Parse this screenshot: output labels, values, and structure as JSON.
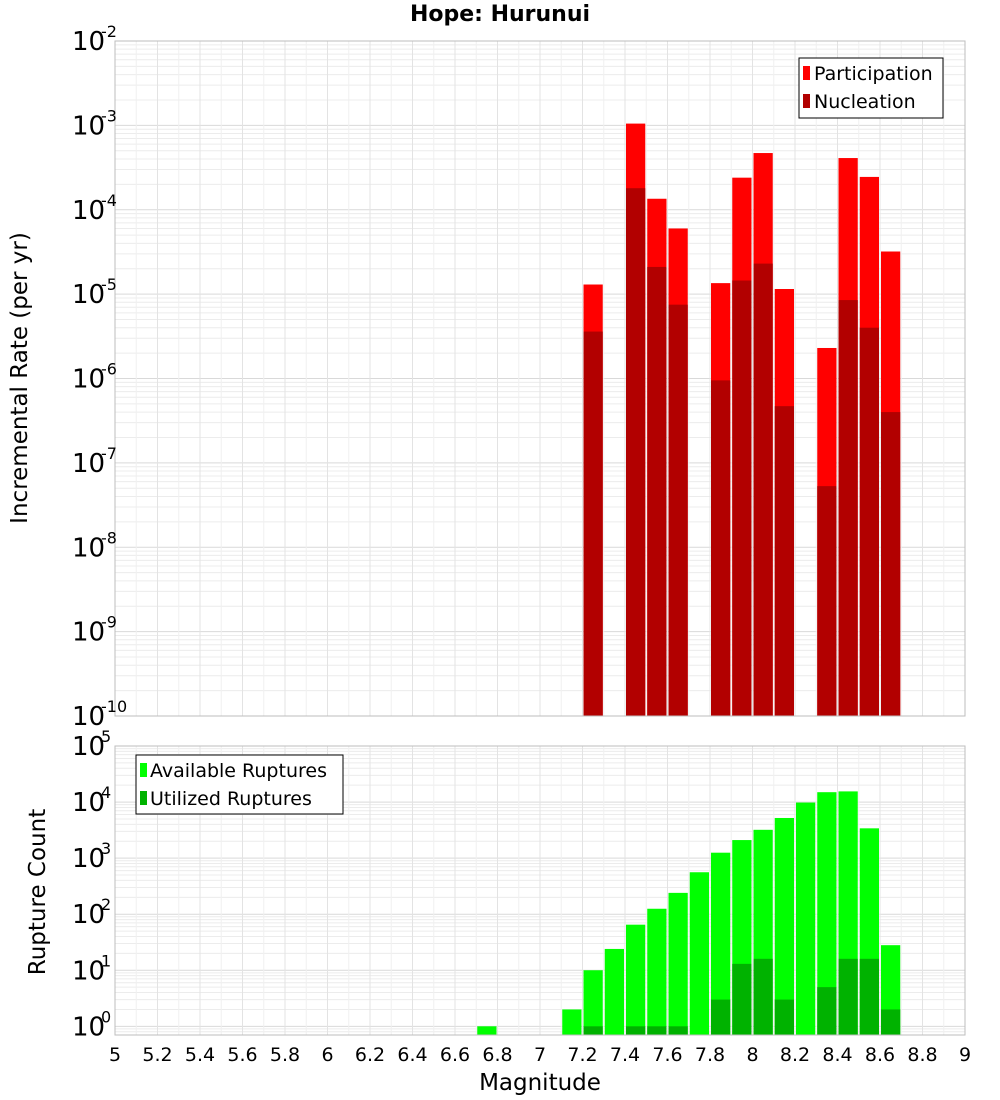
{
  "title": "Hope: Hurunui",
  "chart_data": [
    {
      "type": "bar",
      "ylabel": "Incremental Rate (per yr)",
      "yscale": "log",
      "ylim": [
        1e-10,
        0.01
      ],
      "xlim": [
        5,
        9
      ],
      "grid": true,
      "legend_position": "top-right",
      "bar_width": 0.1,
      "series": [
        {
          "name": "Participation",
          "color": "#ff0000",
          "x": [
            7.25,
            7.45,
            7.55,
            7.65,
            7.85,
            7.95,
            8.05,
            8.15,
            8.35,
            8.45,
            8.55,
            8.65
          ],
          "values": [
            1.3e-05,
            0.00105,
            0.000135,
            6e-05,
            1.35e-05,
            0.00024,
            0.00047,
            1.15e-05,
            2.3e-06,
            0.00041,
            0.000245,
            3.2e-05
          ]
        },
        {
          "name": "Nucleation",
          "color": "#b20000",
          "x": [
            7.25,
            7.45,
            7.55,
            7.65,
            7.85,
            7.95,
            8.05,
            8.15,
            8.35,
            8.45,
            8.55,
            8.65
          ],
          "values": [
            3.6e-06,
            0.00018,
            2.1e-05,
            7.5e-06,
            9.5e-07,
            1.45e-05,
            2.3e-05,
            4.7e-07,
            5.3e-08,
            8.5e-06,
            4e-06,
            4e-07
          ]
        }
      ]
    },
    {
      "type": "bar",
      "xlabel": "Magnitude",
      "ylabel": "Rupture Count",
      "yscale": "log",
      "ylim": [
        0.7,
        100000
      ],
      "xlim": [
        5,
        9
      ],
      "xticks": [
        "5",
        "5.2",
        "5.4",
        "5.6",
        "5.8",
        "6",
        "6.2",
        "6.4",
        "6.6",
        "6.8",
        "7",
        "7.2",
        "7.4",
        "7.6",
        "7.8",
        "8",
        "8.2",
        "8.4",
        "8.6",
        "8.8",
        "9"
      ],
      "grid": true,
      "legend_position": "top-left",
      "bar_width": 0.1,
      "series": [
        {
          "name": "Available Ruptures",
          "color": "#00ff00",
          "x": [
            6.75,
            7.15,
            7.25,
            7.35,
            7.45,
            7.55,
            7.65,
            7.75,
            7.85,
            7.95,
            8.05,
            8.15,
            8.25,
            8.35,
            8.45,
            8.55,
            8.65
          ],
          "values": [
            1,
            2,
            10,
            24,
            65,
            125,
            240,
            560,
            1250,
            2100,
            3200,
            5200,
            9800,
            15000,
            15500,
            3400,
            28
          ]
        },
        {
          "name": "Utilized Ruptures",
          "color": "#00b200",
          "x": [
            7.25,
            7.45,
            7.55,
            7.65,
            7.85,
            7.95,
            8.05,
            8.15,
            8.35,
            8.45,
            8.55,
            8.65
          ],
          "values": [
            1,
            1,
            1,
            1,
            3,
            13,
            16,
            3,
            5,
            16,
            16,
            2
          ]
        }
      ]
    }
  ]
}
